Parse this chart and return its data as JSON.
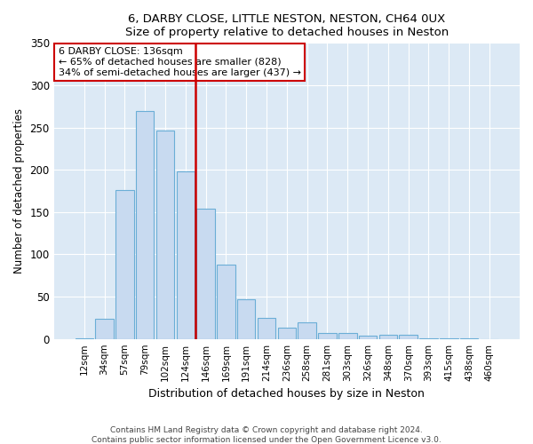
{
  "title1": "6, DARBY CLOSE, LITTLE NESTON, NESTON, CH64 0UX",
  "title2": "Size of property relative to detached houses in Neston",
  "xlabel": "Distribution of detached houses by size in Neston",
  "ylabel": "Number of detached properties",
  "categories": [
    "12sqm",
    "34sqm",
    "57sqm",
    "79sqm",
    "102sqm",
    "124sqm",
    "146sqm",
    "169sqm",
    "191sqm",
    "214sqm",
    "236sqm",
    "258sqm",
    "281sqm",
    "303sqm",
    "326sqm",
    "348sqm",
    "370sqm",
    "393sqm",
    "415sqm",
    "438sqm",
    "460sqm"
  ],
  "values": [
    1,
    24,
    176,
    270,
    246,
    198,
    154,
    88,
    47,
    25,
    13,
    20,
    7,
    7,
    4,
    5,
    5,
    1,
    1,
    1,
    0
  ],
  "bar_color": "#c8daf0",
  "bar_edge_color": "#6baed6",
  "vline_color": "#cc0000",
  "annotation_title": "6 DARBY CLOSE: 136sqm",
  "annotation_line2": "← 65% of detached houses are smaller (828)",
  "annotation_line3": "34% of semi-detached houses are larger (437) →",
  "annotation_box_color": "#ffffff",
  "annotation_box_edge": "#cc0000",
  "ylim": [
    0,
    350
  ],
  "yticks": [
    0,
    50,
    100,
    150,
    200,
    250,
    300,
    350
  ],
  "footnote1": "Contains HM Land Registry data © Crown copyright and database right 2024.",
  "footnote2": "Contains public sector information licensed under the Open Government Licence v3.0.",
  "fig_bg_color": "#ffffff",
  "plot_bg_color": "#dce9f5"
}
